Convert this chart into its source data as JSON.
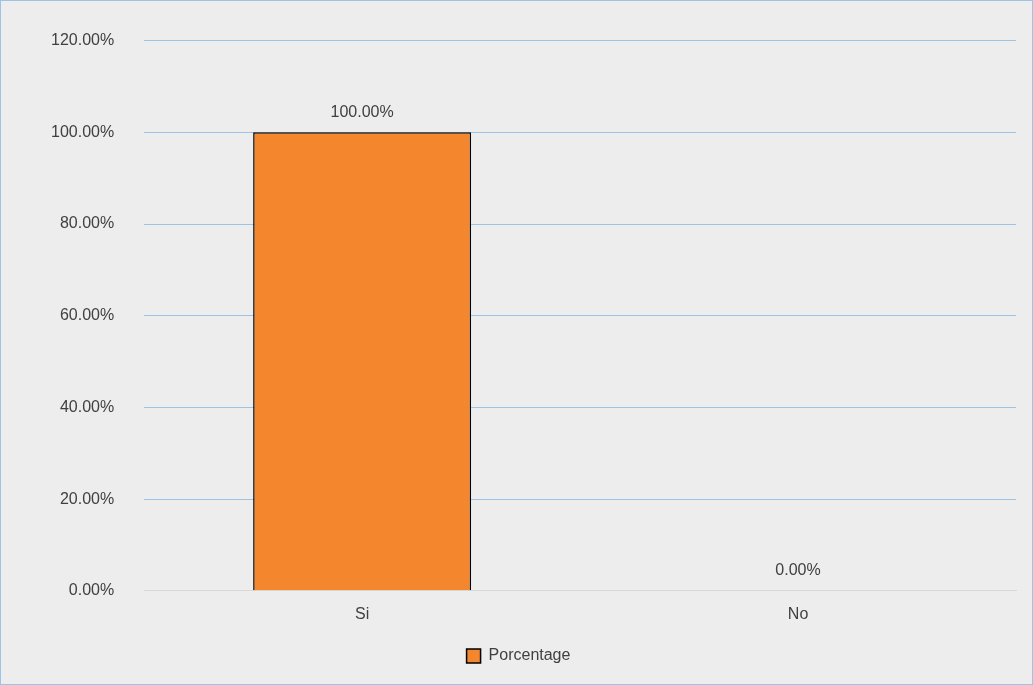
{
  "chart_data": {
    "type": "bar",
    "categories": [
      "Si",
      "No"
    ],
    "series": [
      {
        "name": "Porcentage",
        "color": "#f4862e",
        "values": [
          100,
          0
        ],
        "value_labels": [
          "100.00%",
          "0.00%"
        ]
      }
    ],
    "ylim": [
      0,
      120
    ],
    "yticks": [
      {
        "value": 0,
        "label": "0.00%"
      },
      {
        "value": 20,
        "label": "20.00%"
      },
      {
        "value": 40,
        "label": "40.00%"
      },
      {
        "value": 60,
        "label": "60.00%"
      },
      {
        "value": 80,
        "label": "80.00%"
      },
      {
        "value": 100,
        "label": "100.00%"
      },
      {
        "value": 120,
        "label": "120.00%"
      }
    ],
    "grid": "y",
    "legend": "bottom"
  }
}
